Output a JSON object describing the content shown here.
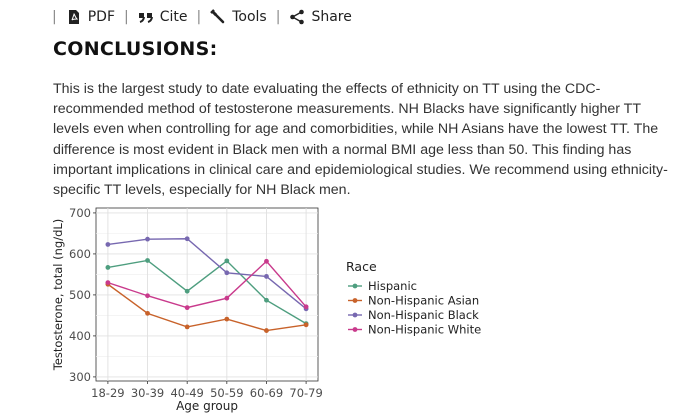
{
  "toolbar": {
    "separator": "|",
    "pdf_label": "PDF",
    "cite_label": "Cite",
    "tools_label": "Tools",
    "share_label": "Share"
  },
  "section": {
    "heading": "CONCLUSIONS:",
    "paragraph": "This is the largest study to date evaluating the effects of ethnicity on TT using the CDC-recommended method of testosterone measurements. NH Blacks have significantly higher TT levels even when controlling for age and comorbidities, while NH Asians have the lowest TT. The difference is most evident in Black men with a normal BMI age less than 50. This finding has important implications in clinical care and epidemiological studies. We recommend using ethnicity-specific TT levels, especially for NH Black men."
  },
  "chart_data": {
    "type": "line",
    "xlabel": "Age group",
    "ylabel": "Testosterone, total (ng/dL)",
    "categories": [
      "18-29",
      "30-39",
      "40-49",
      "50-59",
      "60-69",
      "70-79"
    ],
    "ylim": [
      290,
      712
    ],
    "yticks": [
      300,
      400,
      500,
      600,
      700
    ],
    "grid": true,
    "legend_title": "Race",
    "legend_position": "right",
    "series": [
      {
        "name": "Hispanic",
        "color": "#4e9e7f",
        "values": [
          567,
          584,
          509,
          583,
          487,
          430
        ]
      },
      {
        "name": "Non-Hispanic Asian",
        "color": "#c8622a",
        "values": [
          526,
          455,
          422,
          441,
          413,
          427
        ]
      },
      {
        "name": "Non-Hispanic Black",
        "color": "#7768b0",
        "values": [
          623,
          636,
          637,
          554,
          545,
          466
        ]
      },
      {
        "name": "Non-Hispanic White",
        "color": "#c93a8c",
        "values": [
          530,
          498,
          469,
          492,
          582,
          471
        ]
      }
    ]
  }
}
